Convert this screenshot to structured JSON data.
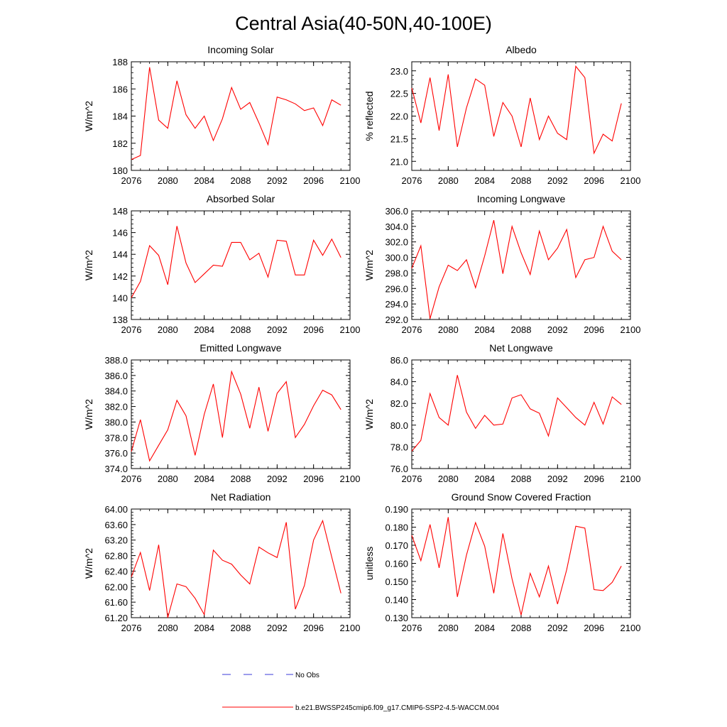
{
  "figure": {
    "title": "Central Asia(40-50N,40-100E)",
    "line_color": "#ff0000",
    "obs_color": "#3b3bd8",
    "legend": [
      {
        "label": "No Obs",
        "style": "dashed"
      },
      {
        "label": "b.e21.BWSSP245cmip6.f09_g17.CMIP6-SSP2-4.5-WACCM.004",
        "style": "solid"
      }
    ]
  },
  "chart_data": [
    {
      "type": "line",
      "title": "Incoming Solar",
      "ylabel": "W/m^2",
      "xlim": [
        2076,
        2100
      ],
      "ylim": [
        180,
        188
      ],
      "xticks": [
        2076,
        2080,
        2084,
        2088,
        2092,
        2096,
        2100
      ],
      "yticks": [
        180,
        182,
        184,
        186,
        188
      ],
      "yticklabels": [
        "180",
        "182",
        "184",
        "186",
        "188"
      ],
      "x": [
        2076,
        2077,
        2078,
        2079,
        2080,
        2081,
        2082,
        2083,
        2084,
        2085,
        2086,
        2087,
        2088,
        2089,
        2090,
        2091,
        2092,
        2093,
        2094,
        2095,
        2096,
        2097,
        2098,
        2099
      ],
      "values": [
        180.8,
        181.1,
        187.6,
        183.7,
        183.1,
        186.6,
        184.1,
        183.1,
        184.0,
        182.2,
        183.8,
        186.1,
        184.5,
        185.0,
        183.5,
        181.9,
        185.4,
        185.2,
        184.9,
        184.4,
        184.6,
        183.3,
        185.2,
        184.8
      ]
    },
    {
      "type": "line",
      "title": "Albedo",
      "ylabel": "% reflected",
      "xlim": [
        2076,
        2100
      ],
      "ylim": [
        20.8,
        23.2
      ],
      "xticks": [
        2076,
        2080,
        2084,
        2088,
        2092,
        2096,
        2100
      ],
      "yticks": [
        21.0,
        21.5,
        22.0,
        22.5,
        23.0
      ],
      "yticklabels": [
        "21.0",
        "21.5",
        "22.0",
        "22.5",
        "23.0"
      ],
      "x": [
        2076,
        2077,
        2078,
        2079,
        2080,
        2081,
        2082,
        2083,
        2084,
        2085,
        2086,
        2087,
        2088,
        2089,
        2090,
        2091,
        2092,
        2093,
        2094,
        2095,
        2096,
        2097,
        2098,
        2099
      ],
      "values": [
        22.62,
        21.85,
        22.85,
        21.68,
        22.92,
        21.32,
        22.18,
        22.82,
        22.68,
        21.55,
        22.3,
        22.0,
        21.32,
        22.4,
        21.48,
        22.0,
        21.62,
        21.48,
        23.1,
        22.85,
        21.18,
        21.6,
        21.45,
        22.28
      ]
    },
    {
      "type": "line",
      "title": "Absorbed Solar",
      "ylabel": "W/m^2",
      "xlim": [
        2076,
        2100
      ],
      "ylim": [
        138,
        148
      ],
      "xticks": [
        2076,
        2080,
        2084,
        2088,
        2092,
        2096,
        2100
      ],
      "yticks": [
        138,
        140,
        142,
        144,
        146,
        148
      ],
      "yticklabels": [
        "138",
        "140",
        "142",
        "144",
        "146",
        "148"
      ],
      "x": [
        2076,
        2077,
        2078,
        2079,
        2080,
        2081,
        2082,
        2083,
        2084,
        2085,
        2086,
        2087,
        2088,
        2089,
        2090,
        2091,
        2092,
        2093,
        2094,
        2095,
        2096,
        2097,
        2098,
        2099
      ],
      "values": [
        140.0,
        141.5,
        144.8,
        143.9,
        141.2,
        146.6,
        143.2,
        141.4,
        142.2,
        143.0,
        142.9,
        145.1,
        145.1,
        143.5,
        144.1,
        141.9,
        145.3,
        145.2,
        142.1,
        142.1,
        145.3,
        143.9,
        145.4,
        143.7
      ]
    },
    {
      "type": "line",
      "title": "Incoming Longwave",
      "ylabel": "W/m^2",
      "xlim": [
        2076,
        2100
      ],
      "ylim": [
        292,
        306
      ],
      "xticks": [
        2076,
        2080,
        2084,
        2088,
        2092,
        2096,
        2100
      ],
      "yticks": [
        292,
        294,
        296,
        298,
        300,
        302,
        304,
        306
      ],
      "yticklabels": [
        "292.0",
        "294.0",
        "296.0",
        "298.0",
        "300.0",
        "302.0",
        "304.0",
        "306.0"
      ],
      "x": [
        2076,
        2077,
        2078,
        2079,
        2080,
        2081,
        2082,
        2083,
        2084,
        2085,
        2086,
        2087,
        2088,
        2089,
        2090,
        2091,
        2092,
        2093,
        2094,
        2095,
        2096,
        2097,
        2098,
        2099
      ],
      "values": [
        298.6,
        301.5,
        292.1,
        296.2,
        299.0,
        298.3,
        299.7,
        296.1,
        300.2,
        304.8,
        297.9,
        304.0,
        300.6,
        297.8,
        303.4,
        299.7,
        301.2,
        303.6,
        297.4,
        299.7,
        300.0,
        304.0,
        300.8,
        299.7
      ]
    },
    {
      "type": "line",
      "title": "Emitted Longwave",
      "ylabel": "W/m^2",
      "xlim": [
        2076,
        2100
      ],
      "ylim": [
        374,
        388
      ],
      "xticks": [
        2076,
        2080,
        2084,
        2088,
        2092,
        2096,
        2100
      ],
      "yticks": [
        374,
        376,
        378,
        380,
        382,
        384,
        386,
        388
      ],
      "yticklabels": [
        "374.0",
        "376.0",
        "378.0",
        "380.0",
        "382.0",
        "384.0",
        "386.0",
        "388.0"
      ],
      "x": [
        2076,
        2077,
        2078,
        2079,
        2080,
        2081,
        2082,
        2083,
        2084,
        2085,
        2086,
        2087,
        2088,
        2089,
        2090,
        2091,
        2092,
        2093,
        2094,
        2095,
        2096,
        2097,
        2098,
        2099
      ],
      "values": [
        376.2,
        380.3,
        375.0,
        377.0,
        379.0,
        382.8,
        380.8,
        375.7,
        381.0,
        384.9,
        378.0,
        386.5,
        383.6,
        379.2,
        384.5,
        378.8,
        383.7,
        385.2,
        378.0,
        379.7,
        382.1,
        384.1,
        383.5,
        381.6
      ]
    },
    {
      "type": "line",
      "title": "Net Longwave",
      "ylabel": "W/m^2",
      "xlim": [
        2076,
        2100
      ],
      "ylim": [
        76,
        86
      ],
      "xticks": [
        2076,
        2080,
        2084,
        2088,
        2092,
        2096,
        2100
      ],
      "yticks": [
        76,
        78,
        80,
        82,
        84,
        86
      ],
      "yticklabels": [
        "76.0",
        "78.0",
        "80.0",
        "82.0",
        "84.0",
        "86.0"
      ],
      "x": [
        2076,
        2077,
        2078,
        2079,
        2080,
        2081,
        2082,
        2083,
        2084,
        2085,
        2086,
        2087,
        2088,
        2089,
        2090,
        2091,
        2092,
        2093,
        2094,
        2095,
        2096,
        2097,
        2098,
        2099
      ],
      "values": [
        77.6,
        78.6,
        82.9,
        80.7,
        80.0,
        84.6,
        81.2,
        79.7,
        80.9,
        80.0,
        80.1,
        82.5,
        82.8,
        81.5,
        81.1,
        79.0,
        82.5,
        81.6,
        80.7,
        80.0,
        82.1,
        80.1,
        82.6,
        81.9
      ]
    },
    {
      "type": "line",
      "title": "Net Radiation",
      "ylabel": "W/m^2",
      "xlim": [
        2076,
        2100
      ],
      "ylim": [
        61.2,
        64.0
      ],
      "xticks": [
        2076,
        2080,
        2084,
        2088,
        2092,
        2096,
        2100
      ],
      "yticks": [
        61.2,
        61.6,
        62.0,
        62.4,
        62.8,
        63.2,
        63.6,
        64.0
      ],
      "yticklabels": [
        "61.20",
        "61.60",
        "62.00",
        "62.40",
        "62.80",
        "63.20",
        "63.60",
        "64.00"
      ],
      "x": [
        2076,
        2077,
        2078,
        2079,
        2080,
        2081,
        2082,
        2083,
        2084,
        2085,
        2086,
        2087,
        2088,
        2089,
        2090,
        2091,
        2092,
        2093,
        2094,
        2095,
        2096,
        2097,
        2098,
        2099
      ],
      "values": [
        62.25,
        62.88,
        61.9,
        63.08,
        61.2,
        62.07,
        62.0,
        61.7,
        61.28,
        62.94,
        62.68,
        62.58,
        62.3,
        62.07,
        63.02,
        62.87,
        62.75,
        63.66,
        61.42,
        62.03,
        63.2,
        63.7,
        62.76,
        61.83
      ]
    },
    {
      "type": "line",
      "title": "Ground Snow Covered Fraction",
      "ylabel": "unitless",
      "xlim": [
        2076,
        2100
      ],
      "ylim": [
        0.13,
        0.19
      ],
      "xticks": [
        2076,
        2080,
        2084,
        2088,
        2092,
        2096,
        2100
      ],
      "yticks": [
        0.13,
        0.14,
        0.15,
        0.16,
        0.17,
        0.18,
        0.19
      ],
      "yticklabels": [
        "0.130",
        "0.140",
        "0.150",
        "0.160",
        "0.170",
        "0.180",
        "0.190"
      ],
      "x": [
        2076,
        2077,
        2078,
        2079,
        2080,
        2081,
        2082,
        2083,
        2084,
        2085,
        2086,
        2087,
        2088,
        2089,
        2090,
        2091,
        2092,
        2093,
        2094,
        2095,
        2096,
        2097,
        2098,
        2099
      ],
      "values": [
        0.1755,
        0.1615,
        0.1815,
        0.1575,
        0.1855,
        0.1415,
        0.1645,
        0.1825,
        0.1695,
        0.1435,
        0.1765,
        0.1515,
        0.1315,
        0.1545,
        0.1415,
        0.1585,
        0.1375,
        0.1565,
        0.1805,
        0.1795,
        0.1455,
        0.145,
        0.1495,
        0.1585
      ]
    }
  ]
}
